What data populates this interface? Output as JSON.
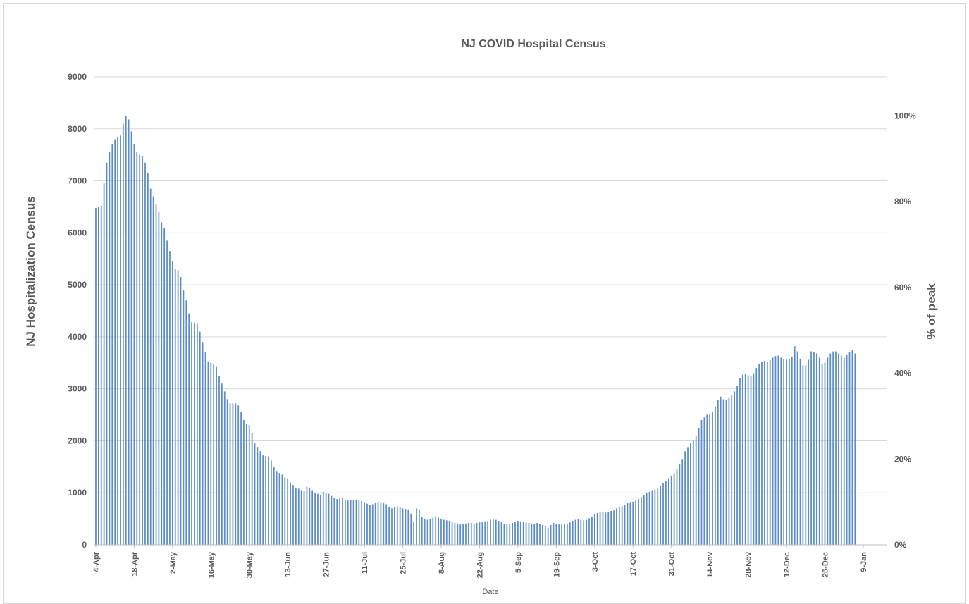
{
  "chart_data": {
    "type": "bar",
    "title": "NJ COVID Hospital Census",
    "xlabel": "Date",
    "ylabel": "NJ Hospitalization Census",
    "y2label": "% of peak",
    "ylim": [
      0,
      9000
    ],
    "yticks": [
      "0",
      "1000",
      "2000",
      "3000",
      "4000",
      "5000",
      "6000",
      "7000",
      "8000",
      "9000"
    ],
    "y2ticks": [
      "0%",
      "20%",
      "40%",
      "60%",
      "80%",
      "100%"
    ],
    "y2_values": [
      0,
      20,
      40,
      60,
      80,
      100
    ],
    "peak": 8250,
    "grid": true,
    "legend": "none",
    "bar_color": "#5b8cc8",
    "x_ticks": [
      {
        "label": "4-Apr",
        "index": 0
      },
      {
        "label": "18-Apr",
        "index": 14
      },
      {
        "label": "2-May",
        "index": 28
      },
      {
        "label": "16-May",
        "index": 42
      },
      {
        "label": "30-May",
        "index": 56
      },
      {
        "label": "13-Jun",
        "index": 70
      },
      {
        "label": "27-Jun",
        "index": 84
      },
      {
        "label": "11-Jul",
        "index": 98
      },
      {
        "label": "25-Jul",
        "index": 112
      },
      {
        "label": "8-Aug",
        "index": 126
      },
      {
        "label": "22-Aug",
        "index": 140
      },
      {
        "label": "5-Sep",
        "index": 154
      },
      {
        "label": "19-Sep",
        "index": 168
      },
      {
        "label": "3-Oct",
        "index": 182
      },
      {
        "label": "17-Oct",
        "index": 196
      },
      {
        "label": "31-Oct",
        "index": 210
      },
      {
        "label": "14-Nov",
        "index": 224
      },
      {
        "label": "28-Nov",
        "index": 238
      },
      {
        "label": "12-Dec",
        "index": 252
      },
      {
        "label": "26-Dec",
        "index": 266
      },
      {
        "label": "9-Jan",
        "index": 280
      }
    ],
    "keypoints": [
      [
        0,
        6480
      ],
      [
        2,
        6520
      ],
      [
        3,
        6950
      ],
      [
        4,
        7350
      ],
      [
        5,
        7550
      ],
      [
        6,
        7700
      ],
      [
        7,
        7800
      ],
      [
        8,
        7850
      ],
      [
        9,
        7870
      ],
      [
        10,
        8100
      ],
      [
        11,
        8250
      ],
      [
        12,
        8180
      ],
      [
        13,
        7950
      ],
      [
        14,
        7700
      ],
      [
        15,
        7550
      ],
      [
        16,
        7500
      ],
      [
        17,
        7480
      ],
      [
        18,
        7350
      ],
      [
        19,
        7150
      ],
      [
        20,
        6850
      ],
      [
        21,
        6700
      ],
      [
        22,
        6550
      ],
      [
        23,
        6400
      ],
      [
        24,
        6200
      ],
      [
        25,
        6100
      ],
      [
        26,
        5850
      ],
      [
        27,
        5650
      ],
      [
        28,
        5450
      ],
      [
        29,
        5300
      ],
      [
        30,
        5280
      ],
      [
        31,
        5150
      ],
      [
        32,
        4900
      ],
      [
        33,
        4700
      ],
      [
        34,
        4450
      ],
      [
        35,
        4280
      ],
      [
        37,
        4250
      ],
      [
        38,
        4100
      ],
      [
        39,
        3900
      ],
      [
        40,
        3700
      ],
      [
        41,
        3530
      ],
      [
        43,
        3480
      ],
      [
        44,
        3420
      ],
      [
        45,
        3250
      ],
      [
        46,
        3100
      ],
      [
        47,
        2950
      ],
      [
        48,
        2800
      ],
      [
        49,
        2720
      ],
      [
        51,
        2720
      ],
      [
        52,
        2680
      ],
      [
        53,
        2550
      ],
      [
        54,
        2400
      ],
      [
        55,
        2320
      ],
      [
        56,
        2300
      ],
      [
        57,
        2150
      ],
      [
        58,
        1950
      ],
      [
        59,
        1880
      ],
      [
        60,
        1800
      ],
      [
        61,
        1720
      ],
      [
        63,
        1700
      ],
      [
        64,
        1620
      ],
      [
        65,
        1500
      ],
      [
        66,
        1420
      ],
      [
        67,
        1380
      ],
      [
        68,
        1350
      ],
      [
        69,
        1300
      ],
      [
        70,
        1280
      ],
      [
        71,
        1200
      ],
      [
        72,
        1150
      ],
      [
        73,
        1100
      ],
      [
        74,
        1080
      ],
      [
        75,
        1050
      ],
      [
        76,
        1030
      ],
      [
        77,
        1120
      ],
      [
        78,
        1100
      ],
      [
        79,
        1050
      ],
      [
        80,
        1000
      ],
      [
        81,
        980
      ],
      [
        82,
        950
      ],
      [
        83,
        1020
      ],
      [
        84,
        1000
      ],
      [
        85,
        980
      ],
      [
        86,
        940
      ],
      [
        87,
        900
      ],
      [
        88,
        880
      ],
      [
        89,
        890
      ],
      [
        90,
        900
      ],
      [
        91,
        870
      ],
      [
        92,
        850
      ],
      [
        93,
        860
      ],
      [
        95,
        870
      ],
      [
        96,
        860
      ],
      [
        97,
        840
      ],
      [
        98,
        820
      ],
      [
        99,
        790
      ],
      [
        100,
        760
      ],
      [
        101,
        780
      ],
      [
        102,
        800
      ],
      [
        103,
        830
      ],
      [
        104,
        820
      ],
      [
        105,
        800
      ],
      [
        106,
        780
      ],
      [
        107,
        720
      ],
      [
        108,
        700
      ],
      [
        109,
        720
      ],
      [
        110,
        740
      ],
      [
        111,
        720
      ],
      [
        112,
        700
      ],
      [
        113,
        690
      ],
      [
        114,
        680
      ],
      [
        115,
        600
      ],
      [
        116,
        450
      ],
      [
        117,
        700
      ],
      [
        118,
        680
      ],
      [
        119,
        530
      ],
      [
        120,
        500
      ],
      [
        121,
        480
      ],
      [
        122,
        500
      ],
      [
        123,
        520
      ],
      [
        124,
        550
      ],
      [
        125,
        520
      ],
      [
        126,
        500
      ],
      [
        127,
        480
      ],
      [
        128,
        470
      ],
      [
        129,
        460
      ],
      [
        130,
        440
      ],
      [
        131,
        420
      ],
      [
        132,
        410
      ],
      [
        133,
        390
      ],
      [
        134,
        400
      ],
      [
        135,
        410
      ],
      [
        136,
        420
      ],
      [
        137,
        420
      ],
      [
        138,
        410
      ],
      [
        139,
        420
      ],
      [
        140,
        430
      ],
      [
        141,
        440
      ],
      [
        142,
        450
      ],
      [
        143,
        460
      ],
      [
        144,
        480
      ],
      [
        145,
        500
      ],
      [
        146,
        480
      ],
      [
        147,
        460
      ],
      [
        148,
        440
      ],
      [
        149,
        400
      ],
      [
        150,
        390
      ],
      [
        151,
        400
      ],
      [
        152,
        420
      ],
      [
        153,
        440
      ],
      [
        154,
        460
      ],
      [
        155,
        450
      ],
      [
        156,
        440
      ],
      [
        157,
        430
      ],
      [
        158,
        420
      ],
      [
        159,
        410
      ],
      [
        160,
        400
      ],
      [
        161,
        420
      ],
      [
        162,
        400
      ],
      [
        163,
        380
      ],
      [
        164,
        360
      ],
      [
        165,
        330
      ],
      [
        166,
        380
      ],
      [
        167,
        420
      ],
      [
        168,
        400
      ],
      [
        169,
        390
      ],
      [
        170,
        390
      ],
      [
        171,
        400
      ],
      [
        172,
        410
      ],
      [
        173,
        430
      ],
      [
        174,
        460
      ],
      [
        175,
        480
      ],
      [
        176,
        490
      ],
      [
        177,
        480
      ],
      [
        178,
        470
      ],
      [
        179,
        480
      ],
      [
        180,
        510
      ],
      [
        181,
        530
      ],
      [
        182,
        580
      ],
      [
        183,
        610
      ],
      [
        184,
        630
      ],
      [
        185,
        640
      ],
      [
        186,
        620
      ],
      [
        187,
        630
      ],
      [
        188,
        650
      ],
      [
        189,
        660
      ],
      [
        190,
        700
      ],
      [
        191,
        720
      ],
      [
        192,
        740
      ],
      [
        193,
        760
      ],
      [
        194,
        800
      ],
      [
        195,
        820
      ],
      [
        196,
        830
      ],
      [
        197,
        850
      ],
      [
        198,
        880
      ],
      [
        199,
        920
      ],
      [
        200,
        960
      ],
      [
        201,
        1000
      ],
      [
        202,
        1020
      ],
      [
        203,
        1050
      ],
      [
        204,
        1060
      ],
      [
        205,
        1080
      ],
      [
        206,
        1130
      ],
      [
        207,
        1180
      ],
      [
        208,
        1220
      ],
      [
        209,
        1280
      ],
      [
        210,
        1330
      ],
      [
        211,
        1380
      ],
      [
        212,
        1450
      ],
      [
        213,
        1550
      ],
      [
        214,
        1650
      ],
      [
        215,
        1800
      ],
      [
        216,
        1880
      ],
      [
        217,
        1950
      ],
      [
        218,
        2000
      ],
      [
        219,
        2100
      ],
      [
        220,
        2250
      ],
      [
        221,
        2400
      ],
      [
        222,
        2450
      ],
      [
        223,
        2500
      ],
      [
        224,
        2520
      ],
      [
        225,
        2560
      ],
      [
        226,
        2650
      ],
      [
        227,
        2780
      ],
      [
        228,
        2850
      ],
      [
        229,
        2800
      ],
      [
        230,
        2780
      ],
      [
        231,
        2820
      ],
      [
        232,
        2880
      ],
      [
        233,
        2950
      ],
      [
        234,
        3050
      ],
      [
        235,
        3200
      ],
      [
        236,
        3270
      ],
      [
        237,
        3280
      ],
      [
        238,
        3260
      ],
      [
        239,
        3240
      ],
      [
        240,
        3300
      ],
      [
        241,
        3400
      ],
      [
        242,
        3480
      ],
      [
        243,
        3520
      ],
      [
        244,
        3540
      ],
      [
        245,
        3520
      ],
      [
        246,
        3550
      ],
      [
        247,
        3600
      ],
      [
        248,
        3630
      ],
      [
        249,
        3640
      ],
      [
        250,
        3600
      ],
      [
        251,
        3570
      ],
      [
        252,
        3560
      ],
      [
        253,
        3570
      ],
      [
        254,
        3620
      ],
      [
        255,
        3820
      ],
      [
        256,
        3720
      ],
      [
        257,
        3580
      ],
      [
        258,
        3450
      ],
      [
        259,
        3450
      ],
      [
        260,
        3560
      ],
      [
        261,
        3720
      ],
      [
        262,
        3700
      ],
      [
        263,
        3680
      ],
      [
        264,
        3600
      ],
      [
        265,
        3480
      ],
      [
        266,
        3500
      ],
      [
        267,
        3600
      ],
      [
        268,
        3680
      ],
      [
        269,
        3720
      ],
      [
        270,
        3720
      ],
      [
        271,
        3680
      ],
      [
        272,
        3640
      ],
      [
        273,
        3600
      ],
      [
        274,
        3650
      ],
      [
        275,
        3700
      ],
      [
        276,
        3740
      ],
      [
        277,
        3680
      ]
    ]
  }
}
